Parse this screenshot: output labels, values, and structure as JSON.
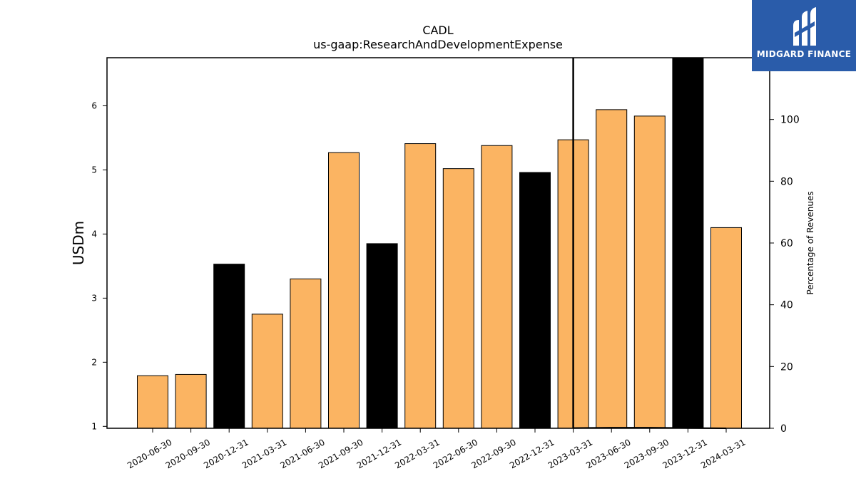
{
  "chart_data": {
    "type": "bar",
    "title": "CADL",
    "subtitle": "us-gaap:ResearchAndDevelopmentExpense",
    "ylabel": "USDm",
    "y2label": "Percentage of Revenues",
    "categories": [
      "2020-06-30",
      "2020-09-30",
      "2020-12-31",
      "2021-03-31",
      "2021-06-30",
      "2021-09-30",
      "2021-12-31",
      "2022-03-31",
      "2022-06-30",
      "2022-09-30",
      "2022-12-31",
      "2023-03-31",
      "2023-06-30",
      "2023-09-30",
      "2023-12-31",
      "2024-03-31"
    ],
    "values": [
      1.79,
      1.81,
      3.53,
      2.75,
      3.3,
      5.27,
      3.85,
      5.41,
      5.02,
      5.38,
      4.96,
      5.47,
      5.94,
      5.84,
      6.75,
      4.1
    ],
    "annual": [
      false,
      false,
      true,
      false,
      false,
      false,
      true,
      false,
      false,
      false,
      true,
      false,
      false,
      false,
      true,
      false
    ],
    "colors": {
      "quarterly": "#fbb462",
      "annual": "#000000"
    },
    "ylim": [
      0.97,
      6.75
    ],
    "yticks": [
      1,
      2,
      3,
      4,
      5,
      6
    ],
    "y2lim": [
      0,
      120
    ],
    "y2ticks": [
      0,
      20,
      40,
      60,
      80,
      100
    ],
    "percent_series": {
      "from_category": "2023-03-31",
      "to_category": "2024-03-31",
      "values": [
        0.1,
        0.2,
        0.2,
        0.1,
        0.0
      ]
    },
    "grid": false
  },
  "logo": {
    "text": "MIDGARD FINANCE",
    "bg": "#2a5caa"
  }
}
